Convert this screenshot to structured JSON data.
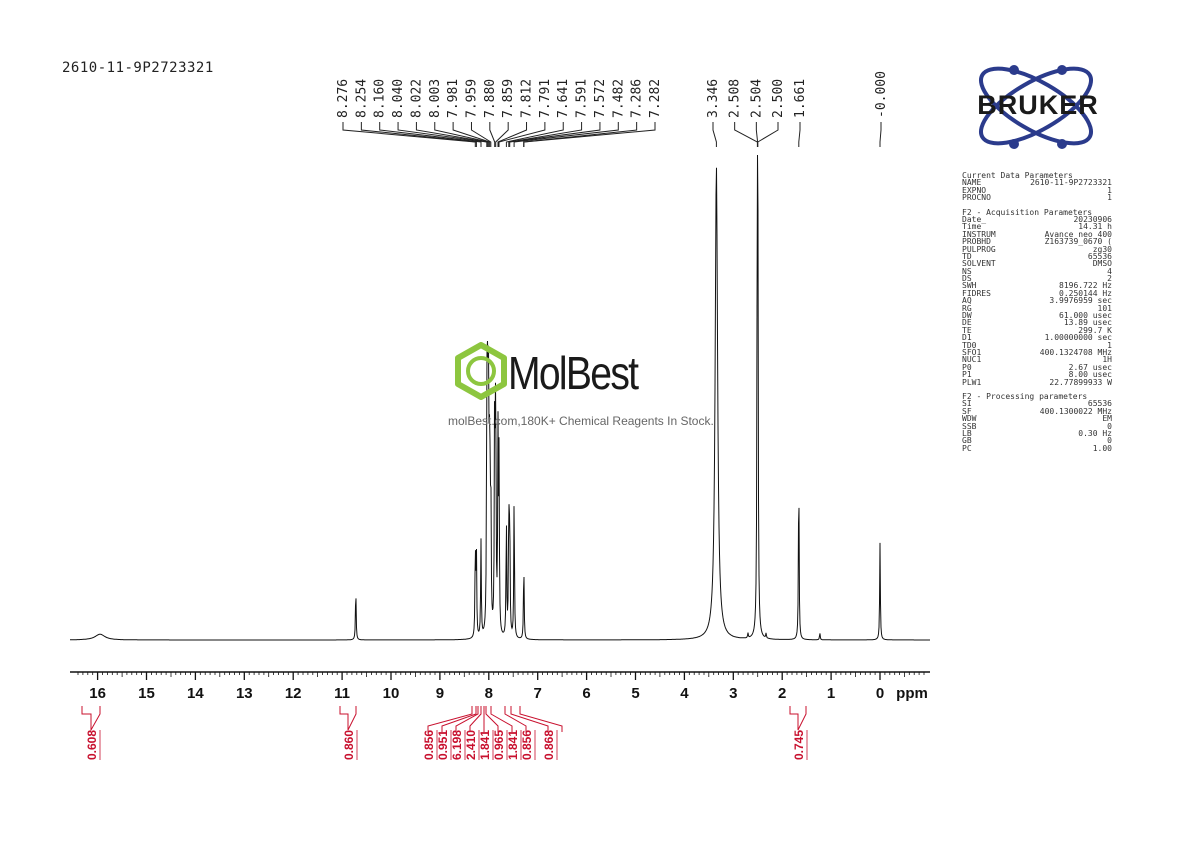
{
  "sample_id": "2610-11-9P2723321",
  "watermark": {
    "brand": "MolBest",
    "tagline": "molBest.com,180K+ Chemical Reagents In Stock."
  },
  "logo_text": "BRUKER",
  "parameters": {
    "sections": [
      {
        "title": "Current Data Parameters",
        "rows": [
          {
            "key": "NAME",
            "value": "2610-11-9P2723321"
          },
          {
            "key": "EXPNO",
            "value": "1"
          },
          {
            "key": "PROCNO",
            "value": "1"
          }
        ]
      },
      {
        "title": "F2 - Acquisition Parameters",
        "rows": [
          {
            "key": "Date_",
            "value": "20230906"
          },
          {
            "key": "Time",
            "value": "14.31 h"
          },
          {
            "key": "INSTRUM",
            "value": "Avance neo 400"
          },
          {
            "key": "PROBHD",
            "value": "Z163739_0670 ("
          },
          {
            "key": "PULPROG",
            "value": "zg30"
          },
          {
            "key": "TD",
            "value": "65536"
          },
          {
            "key": "SOLVENT",
            "value": "DMSO"
          },
          {
            "key": "NS",
            "value": "4"
          },
          {
            "key": "DS",
            "value": "2"
          },
          {
            "key": "SWH",
            "value": "8196.722 Hz"
          },
          {
            "key": "FIDRES",
            "value": "0.250144 Hz"
          },
          {
            "key": "AQ",
            "value": "3.9976959 sec"
          },
          {
            "key": "RG",
            "value": "101"
          },
          {
            "key": "DW",
            "value": "61.000 usec"
          },
          {
            "key": "DE",
            "value": "13.89 usec"
          },
          {
            "key": "TE",
            "value": "299.7 K"
          },
          {
            "key": "D1",
            "value": "1.00000000 sec"
          },
          {
            "key": "TD0",
            "value": "1"
          },
          {
            "key": "SFO1",
            "value": "400.1324708 MHz"
          },
          {
            "key": "NUC1",
            "value": "1H"
          },
          {
            "key": "P0",
            "value": "2.67 usec"
          },
          {
            "key": "P1",
            "value": "8.00 usec"
          },
          {
            "key": "PLW1",
            "value": "22.77899933 W"
          }
        ]
      },
      {
        "title": "F2 - Processing parameters",
        "rows": [
          {
            "key": "SI",
            "value": "65536"
          },
          {
            "key": "SF",
            "value": "400.1300022 MHz"
          },
          {
            "key": "WDW",
            "value": "EM"
          },
          {
            "key": "SSB",
            "value": "0"
          },
          {
            "key": "LB",
            "value": "0.30 Hz"
          },
          {
            "key": "GB",
            "value": "0"
          },
          {
            "key": "PC",
            "value": "1.00"
          }
        ]
      }
    ]
  },
  "chart_data": {
    "type": "line",
    "xlabel": "ppm",
    "xlim": [
      16.4,
      -0.9
    ],
    "x_ticks": [
      16,
      15,
      14,
      13,
      12,
      11,
      10,
      9,
      8,
      7,
      6,
      5,
      4,
      3,
      2,
      1,
      0
    ],
    "peak_labels": [
      {
        "text": "8.276",
        "ppm": 8.276
      },
      {
        "text": "8.254",
        "ppm": 8.254
      },
      {
        "text": "8.160",
        "ppm": 8.16
      },
      {
        "text": "8.040",
        "ppm": 8.04
      },
      {
        "text": "8.022",
        "ppm": 8.022
      },
      {
        "text": "8.003",
        "ppm": 8.003
      },
      {
        "text": "7.981",
        "ppm": 7.981
      },
      {
        "text": "7.959",
        "ppm": 7.959
      },
      {
        "text": "7.880",
        "ppm": 7.88
      },
      {
        "text": "7.859",
        "ppm": 7.859
      },
      {
        "text": "7.812",
        "ppm": 7.812
      },
      {
        "text": "7.791",
        "ppm": 7.791
      },
      {
        "text": "7.641",
        "ppm": 7.641
      },
      {
        "text": "7.591",
        "ppm": 7.591
      },
      {
        "text": "7.572",
        "ppm": 7.572
      },
      {
        "text": "7.482",
        "ppm": 7.482
      },
      {
        "text": "7.286",
        "ppm": 7.286
      },
      {
        "text": "7.282",
        "ppm": 7.282
      },
      {
        "text": "3.346",
        "ppm": 3.346
      },
      {
        "text": "2.508",
        "ppm": 2.508
      },
      {
        "text": "2.504",
        "ppm": 2.504
      },
      {
        "text": "2.500",
        "ppm": 2.5
      },
      {
        "text": "1.661",
        "ppm": 1.661
      },
      {
        "text": "-0.000",
        "ppm": 0.0
      }
    ],
    "peaks": [
      {
        "ppm": 15.95,
        "height": 0.012,
        "width": 0.12
      },
      {
        "ppm": 10.72,
        "height": 0.11
      },
      {
        "ppm": 8.276,
        "height": 0.19
      },
      {
        "ppm": 8.254,
        "height": 0.18
      },
      {
        "ppm": 8.16,
        "height": 0.2
      },
      {
        "ppm": 8.04,
        "height": 0.5
      },
      {
        "ppm": 8.022,
        "height": 0.55
      },
      {
        "ppm": 8.003,
        "height": 0.48
      },
      {
        "ppm": 7.981,
        "height": 0.42
      },
      {
        "ppm": 7.959,
        "height": 0.3
      },
      {
        "ppm": 7.88,
        "height": 0.5
      },
      {
        "ppm": 7.859,
        "height": 0.52
      },
      {
        "ppm": 7.812,
        "height": 0.4
      },
      {
        "ppm": 7.791,
        "height": 0.35
      },
      {
        "ppm": 7.641,
        "height": 0.25
      },
      {
        "ppm": 7.591,
        "height": 0.27
      },
      {
        "ppm": 7.572,
        "height": 0.25
      },
      {
        "ppm": 7.482,
        "height": 0.3
      },
      {
        "ppm": 7.286,
        "height": 0.08
      },
      {
        "ppm": 7.282,
        "height": 0.08
      },
      {
        "ppm": 3.346,
        "height": 0.98,
        "width": 0.03
      },
      {
        "ppm": 2.7,
        "height": 0.01
      },
      {
        "ppm": 2.508,
        "height": 0.5
      },
      {
        "ppm": 2.504,
        "height": 0.9
      },
      {
        "ppm": 2.5,
        "height": 0.5
      },
      {
        "ppm": 2.33,
        "height": 0.01
      },
      {
        "ppm": 1.661,
        "height": 0.36
      },
      {
        "ppm": 1.23,
        "height": 0.015
      },
      {
        "ppm": 0.0,
        "height": 0.2
      }
    ],
    "integrals": [
      {
        "value": "0.608",
        "ppm": 16.0
      },
      {
        "value": "0.860",
        "ppm": 10.72
      },
      {
        "value": "0.856",
        "ppm": 8.27
      },
      {
        "value": "0.951",
        "ppm": 8.16
      },
      {
        "value": "6.198",
        "ppm": 8.0
      },
      {
        "value": "2.410",
        "ppm": 7.87
      },
      {
        "value": "1.841",
        "ppm": 7.8
      },
      {
        "value": "0.965",
        "ppm": 7.64
      },
      {
        "value": "1.841",
        "ppm": 7.58
      },
      {
        "value": "0.856",
        "ppm": 7.48
      },
      {
        "value": "0.868",
        "ppm": 7.28
      },
      {
        "value": "0.745",
        "ppm": 1.66
      }
    ]
  }
}
